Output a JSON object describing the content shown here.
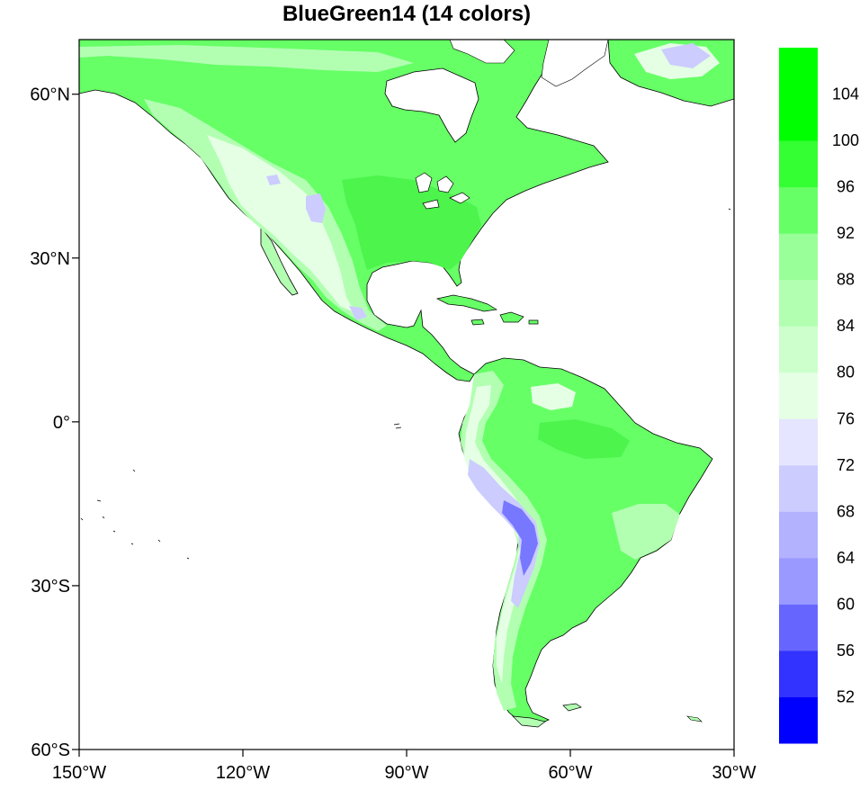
{
  "title": "BlueGreen14 (14 colors)",
  "map": {
    "lon_range": [
      -150,
      -30
    ],
    "lat_range": [
      -60,
      70
    ],
    "x_ticks": [
      {
        "lon": -150,
        "label": "150°W"
      },
      {
        "lon": -120,
        "label": "120°W"
      },
      {
        "lon": -90,
        "label": "90°W"
      },
      {
        "lon": -60,
        "label": "60°W"
      },
      {
        "lon": -30,
        "label": "30°W"
      }
    ],
    "y_ticks": [
      {
        "lat": 60,
        "label": "60°N"
      },
      {
        "lat": 30,
        "label": "30°N"
      },
      {
        "lat": 0,
        "label": "0°"
      },
      {
        "lat": -30,
        "label": "30°S"
      },
      {
        "lat": -60,
        "label": "60°S"
      }
    ]
  },
  "colorbar": {
    "labels": [
      "52",
      "56",
      "60",
      "64",
      "68",
      "72",
      "76",
      "80",
      "84",
      "88",
      "92",
      "96",
      "100",
      "104"
    ],
    "colors": [
      "#0000ff",
      "#3333ff",
      "#6666ff",
      "#9999ff",
      "#b2b2ff",
      "#ccccff",
      "#e5e5ff",
      "#e5ffe5",
      "#ccffcc",
      "#b2ffb2",
      "#99ff99",
      "#66ff66",
      "#33ff33",
      "#00ff00"
    ]
  },
  "land_colors": {
    "base": "#66ff66",
    "east": "#4cf44c",
    "light": "#b2ffb2",
    "pale": "#e5ffe5",
    "lavender": "#ccccff",
    "blue": "#7777ff"
  }
}
